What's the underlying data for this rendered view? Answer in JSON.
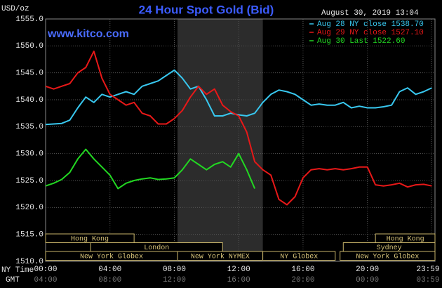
{
  "chart_data": {
    "type": "line",
    "title": "24 Hour Spot Gold (Bid)",
    "y_label": "USD/oz",
    "timestamp": "August 30, 2019 13:04",
    "watermark": "www.kitco.com",
    "x_label": "NY Time",
    "x2_label": "GMT",
    "grid": true,
    "legend": "top-right",
    "x": [
      0,
      0.5,
      1,
      1.5,
      2,
      2.5,
      3,
      3.5,
      4,
      4.5,
      5,
      5.5,
      6,
      6.5,
      7,
      7.5,
      8,
      8.5,
      9,
      9.5,
      10,
      10.5,
      11,
      11.5,
      12,
      12.5,
      13,
      13.5,
      14,
      14.5,
      15,
      15.5,
      16,
      16.5,
      17,
      17.5,
      18,
      18.5,
      19,
      19.5,
      20,
      20.5,
      21,
      21.5,
      22,
      22.5,
      23,
      23.5,
      24
    ],
    "series": [
      {
        "name": "Aug 28 NY close 1538.70",
        "color": "#38c8f0",
        "values": [
          1535.4,
          1535.5,
          1535.6,
          1536.2,
          1538.5,
          1540.5,
          1539.5,
          1541,
          1540.5,
          1541,
          1541.5,
          1541,
          1542.5,
          1543,
          1543.5,
          1544.5,
          1545.5,
          1544,
          1542,
          1542.5,
          1540,
          1537,
          1537,
          1537.5,
          1537.2,
          1537,
          1537.5,
          1539.5,
          1541,
          1541.8,
          1541.5,
          1541,
          1540,
          1539,
          1539.2,
          1539,
          1539,
          1539.5,
          1538.5,
          1538.8,
          1538.5,
          1538.5,
          1538.7,
          1539,
          1541.5,
          1542.2,
          1541,
          1541.5,
          1542.2
        ]
      },
      {
        "name": "Aug 29 NY close 1527.10",
        "color": "#e81818",
        "values": [
          1542.5,
          1542,
          1542.5,
          1543,
          1545,
          1546,
          1549,
          1544,
          1541,
          1540,
          1539,
          1539.5,
          1537.5,
          1537,
          1535.5,
          1535.5,
          1536.5,
          1538,
          1540.5,
          1542.5,
          1541,
          1542,
          1539,
          1537.8,
          1537,
          1534,
          1528.5,
          1527,
          1526,
          1521.5,
          1520.5,
          1522,
          1525.5,
          1527,
          1527.2,
          1527,
          1527.2,
          1527,
          1527.2,
          1527.5,
          1527.5,
          1524.2,
          1524,
          1524.2,
          1524.5,
          1523.8,
          1524.2,
          1524.3,
          1524
        ]
      },
      {
        "name": "Aug 30 Last 1522.60",
        "color": "#22d822",
        "values": [
          1524,
          1524.5,
          1525.2,
          1526.5,
          1529,
          1530.8,
          1529,
          1527.5,
          1526,
          1523.5,
          1524.5,
          1525,
          1525.3,
          1525.5,
          1525.2,
          1525.3,
          1525.5,
          1527,
          1529,
          1528,
          1527,
          1528,
          1528.5,
          1527.5,
          1530,
          1527,
          1523.5,
          null,
          null,
          null,
          null,
          null,
          null,
          null,
          null,
          null,
          null,
          null,
          null,
          null,
          null,
          null,
          null,
          null,
          null,
          null,
          null,
          null,
          null
        ]
      }
    ],
    "xlim": [
      0,
      24.2
    ],
    "ylim": [
      1510,
      1555
    ],
    "yticks": [
      {
        "value": 1510,
        "label": "1510.0"
      },
      {
        "value": 1515,
        "label": "1515.0"
      },
      {
        "value": 1520,
        "label": "1520.0"
      },
      {
        "value": 1525,
        "label": "1525.0"
      },
      {
        "value": 1530,
        "label": "1530.0"
      },
      {
        "value": 1535,
        "label": "1535.0"
      },
      {
        "value": 1540,
        "label": "1540.0"
      },
      {
        "value": 1545,
        "label": "1545.0"
      },
      {
        "value": 1550,
        "label": "1550.0"
      },
      {
        "value": 1555,
        "label": "1555.0"
      }
    ],
    "xticks": [
      {
        "value": 0,
        "label": "00:00"
      },
      {
        "value": 4,
        "label": "04:00"
      },
      {
        "value": 8,
        "label": "08:00"
      },
      {
        "value": 12,
        "label": "12:00"
      },
      {
        "value": 16,
        "label": "16:00"
      },
      {
        "value": 20,
        "label": "20:00"
      },
      {
        "value": 23.983,
        "label": "23:59"
      }
    ],
    "x2ticks": [
      {
        "value": 0,
        "label": "04:00"
      },
      {
        "value": 4,
        "label": "08:00"
      },
      {
        "value": 8,
        "label": "12:00"
      },
      {
        "value": 12,
        "label": "16:00"
      },
      {
        "value": 16,
        "label": "20:00"
      },
      {
        "value": 20,
        "label": "00:00"
      },
      {
        "value": 23.983,
        "label": "03:59"
      }
    ],
    "session_rows": [
      [
        {
          "label": "Hong Kong",
          "start": 0,
          "end": 5.5
        },
        {
          "label": "Hong Kong",
          "start": 20.5,
          "end": 24.2
        }
      ],
      [
        {
          "label": "London",
          "start": 2.8,
          "end": 11
        },
        {
          "label": "Sydney",
          "start": 18.5,
          "end": 24.2
        }
      ],
      [
        {
          "label": "New York Globex",
          "start": 0,
          "end": 8.2
        },
        {
          "label": "New York NYMEX",
          "start": 8.2,
          "end": 13.5,
          "shade": true
        },
        {
          "label": "NY Globex",
          "start": 13.5,
          "end": 18
        },
        {
          "label": "New York Globex",
          "start": 18.3,
          "end": 24.2
        }
      ]
    ]
  }
}
